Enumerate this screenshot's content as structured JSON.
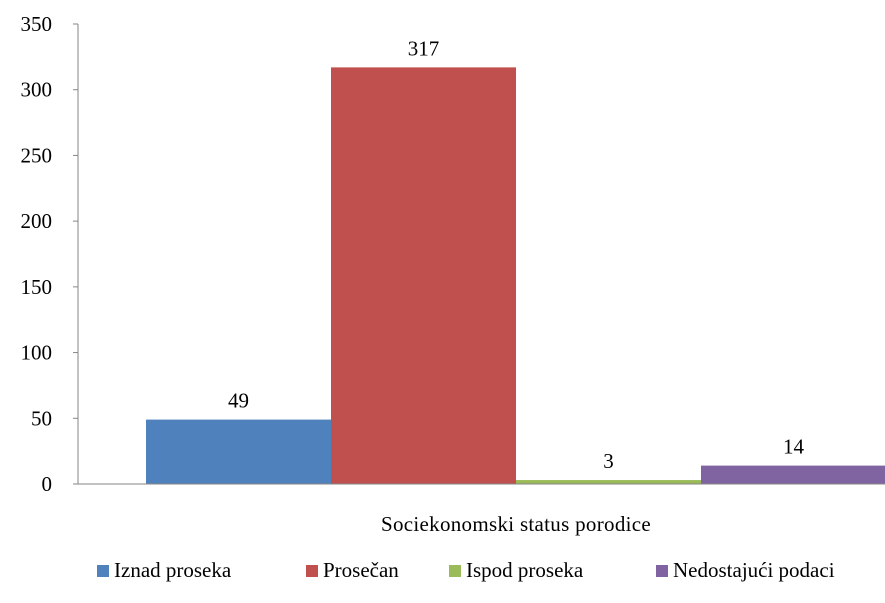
{
  "chart_data": {
    "type": "bar",
    "xlabel": "Sociekonomski status porodice",
    "ylabel": "",
    "ylim": [
      0,
      350
    ],
    "yticks": [
      0,
      50,
      100,
      150,
      200,
      250,
      300,
      350
    ],
    "categories": [
      "Sociekonomski status porodice"
    ],
    "series": [
      {
        "name": "Iznad proseka",
        "values": [
          49
        ],
        "color": "#4F81BD"
      },
      {
        "name": "Prosečan",
        "values": [
          317
        ],
        "color": "#C0504D"
      },
      {
        "name": "Ispod proseka",
        "values": [
          3
        ],
        "color": "#9BBB59"
      },
      {
        "name": "Nedostajući podaci",
        "values": [
          14
        ],
        "color": "#8064A2"
      }
    ],
    "data_labels": true,
    "grid": false,
    "legend": "bottom"
  }
}
